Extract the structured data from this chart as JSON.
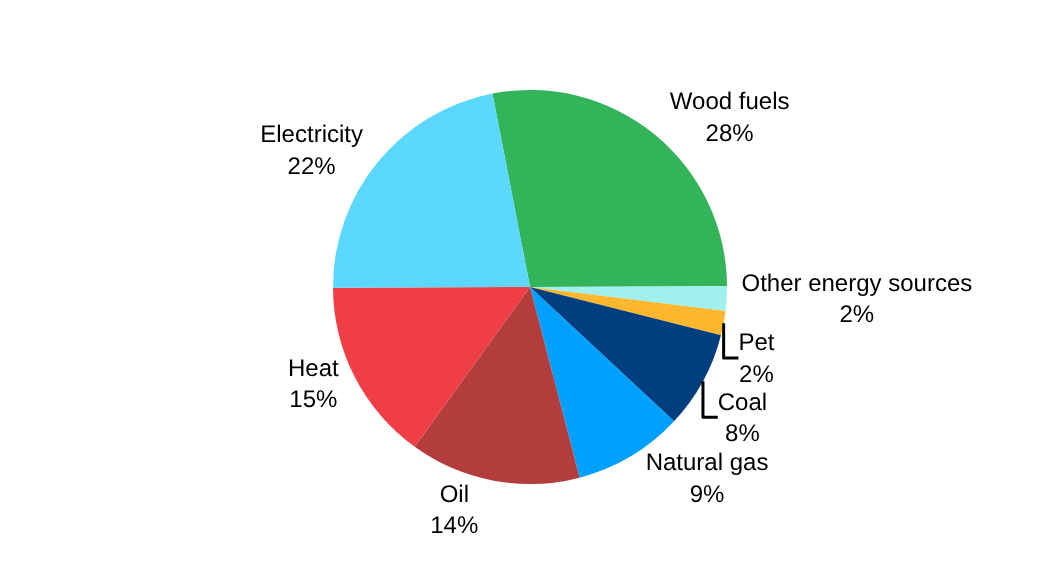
{
  "chart_data": {
    "type": "pie",
    "categories": [
      "Wood fuels",
      "Other energy sources",
      "Pet",
      "Coal",
      "Natural gas",
      "Oil",
      "Heat",
      "Electricity"
    ],
    "values": [
      28,
      2,
      2,
      8,
      9,
      14,
      15,
      22
    ],
    "value_labels": [
      "28%",
      "2%",
      "2%",
      "8%",
      "9%",
      "14%",
      "15%",
      "22%"
    ],
    "colors": [
      "#33b35a",
      "#a0f0f0",
      "#ffb82e",
      "#003f7f",
      "#00a0ff",
      "#b33c3c",
      "#ef3e45",
      "#5cd8ff"
    ],
    "legend": false
  }
}
